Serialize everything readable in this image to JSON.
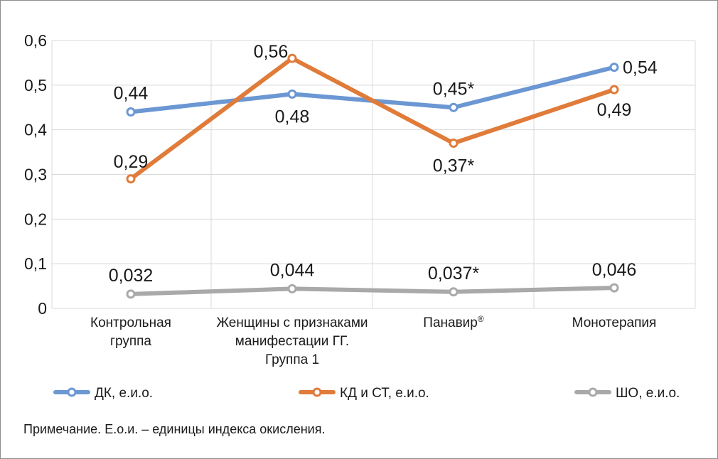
{
  "chart_data": {
    "type": "line",
    "categories": [
      [
        "Контрольная",
        "группа"
      ],
      [
        "Женщины с признаками",
        "манифестации ГГ.",
        "Группа 1"
      ],
      [
        "Панавир®"
      ],
      [
        "Монотерапия"
      ]
    ],
    "ylim": [
      0,
      0.6
    ],
    "yticks": [
      "0",
      "0,1",
      "0,2",
      "0,3",
      "0,4",
      "0,5",
      "0,6"
    ],
    "grid": true,
    "legend_position": "bottom",
    "series": [
      {
        "name": "ДК, е.и.о.",
        "color": "#6b97d3",
        "values": [
          0.44,
          0.48,
          0.45,
          0.54
        ],
        "labels": [
          "0,44",
          "0,48",
          "0,45*",
          "0,54"
        ]
      },
      {
        "name": "КД и СТ, е.и.о.",
        "color": "#e07b39",
        "values": [
          0.29,
          0.56,
          0.37,
          0.49
        ],
        "labels": [
          "0,29",
          "0,56",
          "0,37*",
          "0,49"
        ]
      },
      {
        "name": "ШО, е.и.о.",
        "color": "#a9a9a9",
        "values": [
          0.032,
          0.044,
          0.037,
          0.046
        ],
        "labels": [
          "0,032",
          "0,044",
          "0,037*",
          "0,046"
        ]
      }
    ]
  },
  "note": "Примечание. Е.о.и. – единицы индекса окисления."
}
